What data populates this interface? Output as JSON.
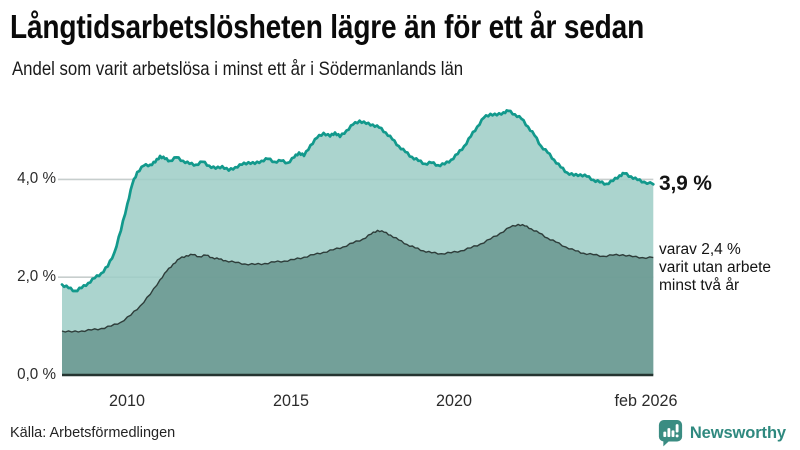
{
  "header": {
    "title": "Långtidsarbetslösheten lägre än för ett år sedan",
    "subtitle": "Andel som varit arbetslösa i minst ett år i Södermanlands län"
  },
  "annotations": {
    "total_value": "3,9 %",
    "subset_line1": "varav 2,4 %",
    "subset_line2": "varit utan arbete",
    "subset_line3": "minst två år"
  },
  "footer": {
    "source": "Källa: Arbetsförmedlingen",
    "brand_name": "Newsworthy",
    "brand_icon": "newsworthy-logo"
  },
  "colors": {
    "line_total": "#12998c",
    "fill_total": "#9ccdc6",
    "line_two_years": "#2e3d3a",
    "fill_two_years": "#68968f",
    "gridline": "#c7cecd",
    "axis_line": "#253430",
    "brand_teal": "#3a8c82",
    "text": "#141414"
  },
  "chart_data": {
    "type": "area",
    "title": "Andel som varit arbetslösa i minst ett år i Södermanlands län",
    "xlabel": "",
    "ylabel": "",
    "x_range": [
      2008.0,
      2026.083
    ],
    "y_range": [
      0,
      5.6
    ],
    "grid": true,
    "legend_position": "none",
    "x_ticks": [
      {
        "t": 2010,
        "label": "2010"
      },
      {
        "t": 2015,
        "label": "2015"
      },
      {
        "t": 2020,
        "label": "2020"
      },
      {
        "t": 2026.083,
        "label": "feb 2026"
      }
    ],
    "y_ticks": [
      {
        "v": 0,
        "label": "0,0 %"
      },
      {
        "v": 2,
        "label": "2,0 %"
      },
      {
        "v": 4,
        "label": "4,0 %"
      }
    ],
    "series": [
      {
        "name": "Arbetslösa minst ett år",
        "end_value": 3.9,
        "end_label": "3,9 %",
        "values": [
          [
            2008.0,
            1.85
          ],
          [
            2008.2,
            1.78
          ],
          [
            2008.4,
            1.72
          ],
          [
            2008.6,
            1.78
          ],
          [
            2008.8,
            1.88
          ],
          [
            2009.0,
            1.98
          ],
          [
            2009.2,
            2.08
          ],
          [
            2009.4,
            2.22
          ],
          [
            2009.6,
            2.5
          ],
          [
            2009.8,
            2.95
          ],
          [
            2010.0,
            3.5
          ],
          [
            2010.15,
            3.9
          ],
          [
            2010.3,
            4.15
          ],
          [
            2010.5,
            4.28
          ],
          [
            2010.7,
            4.3
          ],
          [
            2010.85,
            4.35
          ],
          [
            2011.0,
            4.48
          ],
          [
            2011.15,
            4.42
          ],
          [
            2011.3,
            4.38
          ],
          [
            2011.5,
            4.45
          ],
          [
            2011.7,
            4.38
          ],
          [
            2011.9,
            4.32
          ],
          [
            2012.1,
            4.3
          ],
          [
            2012.3,
            4.36
          ],
          [
            2012.5,
            4.28
          ],
          [
            2012.7,
            4.22
          ],
          [
            2012.9,
            4.27
          ],
          [
            2013.1,
            4.18
          ],
          [
            2013.3,
            4.25
          ],
          [
            2013.5,
            4.3
          ],
          [
            2013.7,
            4.35
          ],
          [
            2013.9,
            4.32
          ],
          [
            2014.1,
            4.38
          ],
          [
            2014.3,
            4.42
          ],
          [
            2014.5,
            4.36
          ],
          [
            2014.7,
            4.38
          ],
          [
            2014.9,
            4.34
          ],
          [
            2015.1,
            4.45
          ],
          [
            2015.25,
            4.55
          ],
          [
            2015.4,
            4.48
          ],
          [
            2015.6,
            4.7
          ],
          [
            2015.8,
            4.85
          ],
          [
            2016.0,
            4.95
          ],
          [
            2016.2,
            4.88
          ],
          [
            2016.35,
            4.96
          ],
          [
            2016.5,
            4.87
          ],
          [
            2016.7,
            5.0
          ],
          [
            2016.9,
            5.12
          ],
          [
            2017.1,
            5.2
          ],
          [
            2017.3,
            5.14
          ],
          [
            2017.5,
            5.12
          ],
          [
            2017.7,
            5.06
          ],
          [
            2017.9,
            4.96
          ],
          [
            2018.1,
            4.82
          ],
          [
            2018.3,
            4.68
          ],
          [
            2018.5,
            4.56
          ],
          [
            2018.7,
            4.46
          ],
          [
            2018.9,
            4.38
          ],
          [
            2019.1,
            4.32
          ],
          [
            2019.3,
            4.34
          ],
          [
            2019.5,
            4.29
          ],
          [
            2019.7,
            4.31
          ],
          [
            2019.9,
            4.4
          ],
          [
            2020.1,
            4.52
          ],
          [
            2020.3,
            4.68
          ],
          [
            2020.5,
            4.88
          ],
          [
            2020.7,
            5.08
          ],
          [
            2020.9,
            5.26
          ],
          [
            2021.1,
            5.34
          ],
          [
            2021.3,
            5.31
          ],
          [
            2021.5,
            5.37
          ],
          [
            2021.65,
            5.4
          ],
          [
            2021.85,
            5.33
          ],
          [
            2022.05,
            5.24
          ],
          [
            2022.25,
            5.08
          ],
          [
            2022.45,
            4.9
          ],
          [
            2022.65,
            4.68
          ],
          [
            2022.85,
            4.55
          ],
          [
            2023.05,
            4.4
          ],
          [
            2023.25,
            4.25
          ],
          [
            2023.45,
            4.14
          ],
          [
            2023.65,
            4.08
          ],
          [
            2023.85,
            4.1
          ],
          [
            2024.05,
            4.06
          ],
          [
            2024.25,
            3.99
          ],
          [
            2024.45,
            3.94
          ],
          [
            2024.65,
            3.91
          ],
          [
            2024.85,
            3.97
          ],
          [
            2025.05,
            4.08
          ],
          [
            2025.2,
            4.12
          ],
          [
            2025.4,
            4.06
          ],
          [
            2025.6,
            3.99
          ],
          [
            2025.8,
            3.95
          ],
          [
            2026.083,
            3.9
          ]
        ]
      },
      {
        "name": "Arbetslösa minst två år",
        "end_value": 2.4,
        "end_label": "varav 2,4 % varit utan arbete minst två år",
        "values": [
          [
            2008.0,
            0.9
          ],
          [
            2008.3,
            0.88
          ],
          [
            2008.6,
            0.9
          ],
          [
            2008.9,
            0.92
          ],
          [
            2009.2,
            0.95
          ],
          [
            2009.5,
            1.0
          ],
          [
            2009.8,
            1.08
          ],
          [
            2010.1,
            1.22
          ],
          [
            2010.4,
            1.42
          ],
          [
            2010.7,
            1.65
          ],
          [
            2011.0,
            1.95
          ],
          [
            2011.2,
            2.12
          ],
          [
            2011.4,
            2.27
          ],
          [
            2011.6,
            2.38
          ],
          [
            2011.8,
            2.44
          ],
          [
            2012.0,
            2.46
          ],
          [
            2012.2,
            2.42
          ],
          [
            2012.4,
            2.45
          ],
          [
            2012.6,
            2.4
          ],
          [
            2012.8,
            2.37
          ],
          [
            2013.0,
            2.34
          ],
          [
            2013.3,
            2.3
          ],
          [
            2013.6,
            2.27
          ],
          [
            2013.9,
            2.26
          ],
          [
            2014.2,
            2.28
          ],
          [
            2014.5,
            2.31
          ],
          [
            2014.8,
            2.33
          ],
          [
            2015.1,
            2.36
          ],
          [
            2015.4,
            2.41
          ],
          [
            2015.7,
            2.46
          ],
          [
            2016.0,
            2.51
          ],
          [
            2016.3,
            2.56
          ],
          [
            2016.6,
            2.62
          ],
          [
            2016.9,
            2.7
          ],
          [
            2017.2,
            2.78
          ],
          [
            2017.45,
            2.88
          ],
          [
            2017.65,
            2.96
          ],
          [
            2017.85,
            2.92
          ],
          [
            2018.05,
            2.86
          ],
          [
            2018.3,
            2.76
          ],
          [
            2018.55,
            2.67
          ],
          [
            2018.8,
            2.6
          ],
          [
            2019.05,
            2.54
          ],
          [
            2019.3,
            2.5
          ],
          [
            2019.6,
            2.48
          ],
          [
            2019.9,
            2.5
          ],
          [
            2020.2,
            2.54
          ],
          [
            2020.5,
            2.6
          ],
          [
            2020.8,
            2.68
          ],
          [
            2021.1,
            2.78
          ],
          [
            2021.4,
            2.9
          ],
          [
            2021.7,
            3.02
          ],
          [
            2021.95,
            3.08
          ],
          [
            2022.15,
            3.05
          ],
          [
            2022.35,
            2.99
          ],
          [
            2022.6,
            2.9
          ],
          [
            2022.85,
            2.8
          ],
          [
            2023.1,
            2.72
          ],
          [
            2023.4,
            2.62
          ],
          [
            2023.7,
            2.54
          ],
          [
            2023.95,
            2.49
          ],
          [
            2024.25,
            2.46
          ],
          [
            2024.55,
            2.43
          ],
          [
            2024.85,
            2.45
          ],
          [
            2025.15,
            2.46
          ],
          [
            2025.45,
            2.42
          ],
          [
            2025.75,
            2.4
          ],
          [
            2026.083,
            2.4
          ]
        ]
      }
    ]
  }
}
